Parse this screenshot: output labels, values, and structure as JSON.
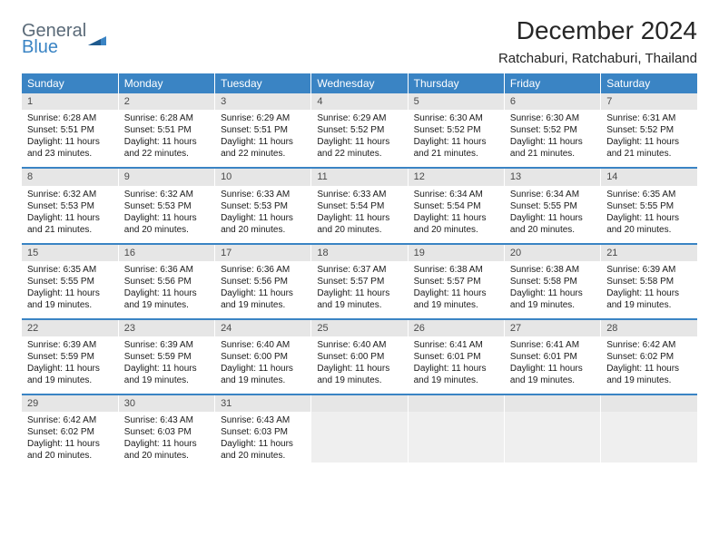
{
  "logo": {
    "text1": "General",
    "text2": "Blue"
  },
  "colors": {
    "header_bg": "#3a84c4",
    "daynum_bg": "#e6e6e6",
    "empty_bg": "#efefef",
    "text": "#1a1a1a"
  },
  "title": "December 2024",
  "location": "Ratchaburi, Ratchaburi, Thailand",
  "dow": [
    "Sunday",
    "Monday",
    "Tuesday",
    "Wednesday",
    "Thursday",
    "Friday",
    "Saturday"
  ],
  "weeks": [
    [
      {
        "n": "1",
        "sr": "6:28 AM",
        "ss": "5:51 PM",
        "dl": "11 hours and 23 minutes."
      },
      {
        "n": "2",
        "sr": "6:28 AM",
        "ss": "5:51 PM",
        "dl": "11 hours and 22 minutes."
      },
      {
        "n": "3",
        "sr": "6:29 AM",
        "ss": "5:51 PM",
        "dl": "11 hours and 22 minutes."
      },
      {
        "n": "4",
        "sr": "6:29 AM",
        "ss": "5:52 PM",
        "dl": "11 hours and 22 minutes."
      },
      {
        "n": "5",
        "sr": "6:30 AM",
        "ss": "5:52 PM",
        "dl": "11 hours and 21 minutes."
      },
      {
        "n": "6",
        "sr": "6:30 AM",
        "ss": "5:52 PM",
        "dl": "11 hours and 21 minutes."
      },
      {
        "n": "7",
        "sr": "6:31 AM",
        "ss": "5:52 PM",
        "dl": "11 hours and 21 minutes."
      }
    ],
    [
      {
        "n": "8",
        "sr": "6:32 AM",
        "ss": "5:53 PM",
        "dl": "11 hours and 21 minutes."
      },
      {
        "n": "9",
        "sr": "6:32 AM",
        "ss": "5:53 PM",
        "dl": "11 hours and 20 minutes."
      },
      {
        "n": "10",
        "sr": "6:33 AM",
        "ss": "5:53 PM",
        "dl": "11 hours and 20 minutes."
      },
      {
        "n": "11",
        "sr": "6:33 AM",
        "ss": "5:54 PM",
        "dl": "11 hours and 20 minutes."
      },
      {
        "n": "12",
        "sr": "6:34 AM",
        "ss": "5:54 PM",
        "dl": "11 hours and 20 minutes."
      },
      {
        "n": "13",
        "sr": "6:34 AM",
        "ss": "5:55 PM",
        "dl": "11 hours and 20 minutes."
      },
      {
        "n": "14",
        "sr": "6:35 AM",
        "ss": "5:55 PM",
        "dl": "11 hours and 20 minutes."
      }
    ],
    [
      {
        "n": "15",
        "sr": "6:35 AM",
        "ss": "5:55 PM",
        "dl": "11 hours and 19 minutes."
      },
      {
        "n": "16",
        "sr": "6:36 AM",
        "ss": "5:56 PM",
        "dl": "11 hours and 19 minutes."
      },
      {
        "n": "17",
        "sr": "6:36 AM",
        "ss": "5:56 PM",
        "dl": "11 hours and 19 minutes."
      },
      {
        "n": "18",
        "sr": "6:37 AM",
        "ss": "5:57 PM",
        "dl": "11 hours and 19 minutes."
      },
      {
        "n": "19",
        "sr": "6:38 AM",
        "ss": "5:57 PM",
        "dl": "11 hours and 19 minutes."
      },
      {
        "n": "20",
        "sr": "6:38 AM",
        "ss": "5:58 PM",
        "dl": "11 hours and 19 minutes."
      },
      {
        "n": "21",
        "sr": "6:39 AM",
        "ss": "5:58 PM",
        "dl": "11 hours and 19 minutes."
      }
    ],
    [
      {
        "n": "22",
        "sr": "6:39 AM",
        "ss": "5:59 PM",
        "dl": "11 hours and 19 minutes."
      },
      {
        "n": "23",
        "sr": "6:39 AM",
        "ss": "5:59 PM",
        "dl": "11 hours and 19 minutes."
      },
      {
        "n": "24",
        "sr": "6:40 AM",
        "ss": "6:00 PM",
        "dl": "11 hours and 19 minutes."
      },
      {
        "n": "25",
        "sr": "6:40 AM",
        "ss": "6:00 PM",
        "dl": "11 hours and 19 minutes."
      },
      {
        "n": "26",
        "sr": "6:41 AM",
        "ss": "6:01 PM",
        "dl": "11 hours and 19 minutes."
      },
      {
        "n": "27",
        "sr": "6:41 AM",
        "ss": "6:01 PM",
        "dl": "11 hours and 19 minutes."
      },
      {
        "n": "28",
        "sr": "6:42 AM",
        "ss": "6:02 PM",
        "dl": "11 hours and 19 minutes."
      }
    ],
    [
      {
        "n": "29",
        "sr": "6:42 AM",
        "ss": "6:02 PM",
        "dl": "11 hours and 20 minutes."
      },
      {
        "n": "30",
        "sr": "6:43 AM",
        "ss": "6:03 PM",
        "dl": "11 hours and 20 minutes."
      },
      {
        "n": "31",
        "sr": "6:43 AM",
        "ss": "6:03 PM",
        "dl": "11 hours and 20 minutes."
      },
      {
        "empty": true
      },
      {
        "empty": true
      },
      {
        "empty": true
      },
      {
        "empty": true
      }
    ]
  ],
  "labels": {
    "sunrise": "Sunrise: ",
    "sunset": "Sunset: ",
    "daylight": "Daylight: "
  }
}
